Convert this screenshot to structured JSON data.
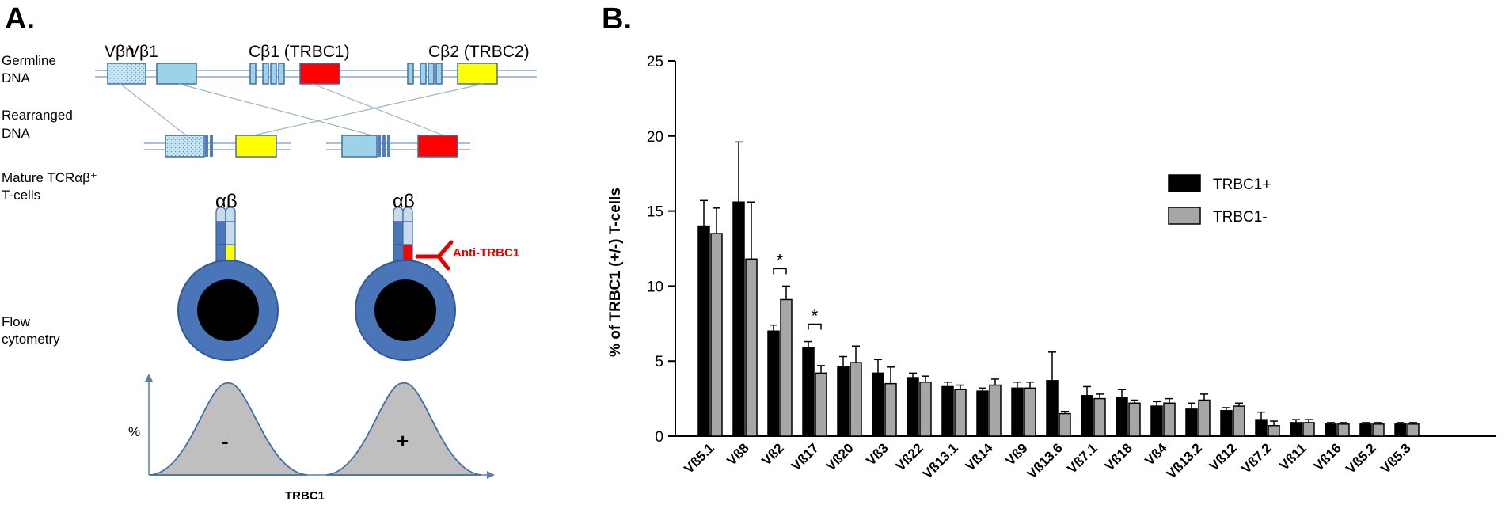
{
  "panel_a": {
    "letter": "A.",
    "row_labels": {
      "germline_line1": "Germline",
      "germline_line2": "DNA",
      "rearranged_line1": "Rearranged",
      "rearranged_line2": "DNA",
      "mature_line1": "Mature TCRαβ⁺",
      "mature_line2": "T-cells",
      "flow_line1": "Flow",
      "flow_line2": "cytometry"
    },
    "gene_labels": {
      "vbn": "Vβn",
      "vb1": "Vβ1",
      "cb1": "Cβ1 (TRBC1)",
      "cb2": "Cβ2 (TRBC2)"
    },
    "alpha_beta": "αβ",
    "antibody_label": "Anti-TRBC1",
    "flow": {
      "y_label": "%",
      "x_label": "TRBC1",
      "neg_symbol": "-",
      "pos_symbol": "+"
    },
    "colors": {
      "gene_blue": "#9dd3e8",
      "segment_blue": "#4f7fbe",
      "trbc1_red": "#ff0000",
      "trbc2_yellow": "#ffff00",
      "cell_blue": "#4a76b9",
      "peak_grey": "#bfbfbf"
    }
  },
  "panel_b": {
    "letter": "B."
  },
  "chart_data": {
    "type": "bar",
    "title": "",
    "xlabel": "",
    "ylabel": "% of TRBC1 (+/-) T-cells",
    "ylim": [
      0,
      25
    ],
    "yticks": [
      0,
      5,
      10,
      15,
      20,
      25
    ],
    "legend_position": "top-right",
    "categories": [
      "Vß5.1",
      "Vß8",
      "Vß2",
      "Vß17",
      "Vß20",
      "Vß3",
      "Vß22",
      "Vß13.1",
      "Vß14",
      "Vß9",
      "Vß13.6",
      "Vß7.1",
      "Vß18",
      "Vß4",
      "Vß13.2",
      "Vß12",
      "Vß7.2",
      "Vß11",
      "Vß16",
      "Vß5.2",
      "Vß5.3"
    ],
    "series": [
      {
        "name": "TRBC1+",
        "color": "#000000",
        "values": [
          14.0,
          15.6,
          7.0,
          5.9,
          4.6,
          4.2,
          3.9,
          3.3,
          3.0,
          3.2,
          3.7,
          2.7,
          2.6,
          2.0,
          1.8,
          1.7,
          1.1,
          0.9,
          0.8,
          0.8,
          0.8
        ],
        "errors": [
          1.7,
          4.0,
          0.4,
          0.4,
          0.7,
          0.9,
          0.3,
          0.3,
          0.2,
          0.4,
          1.9,
          0.6,
          0.5,
          0.3,
          0.4,
          0.2,
          0.5,
          0.2,
          0.1,
          0.1,
          0.1
        ]
      },
      {
        "name": "TRBC1-",
        "color": "#a6a6a6",
        "values": [
          13.5,
          11.8,
          9.1,
          4.2,
          4.9,
          3.5,
          3.6,
          3.1,
          3.4,
          3.2,
          1.5,
          2.5,
          2.2,
          2.2,
          2.4,
          2.0,
          0.7,
          0.9,
          0.8,
          0.8,
          0.8
        ],
        "errors": [
          1.7,
          3.8,
          0.9,
          0.5,
          1.1,
          1.1,
          0.4,
          0.3,
          0.4,
          0.4,
          0.15,
          0.3,
          0.2,
          0.3,
          0.4,
          0.2,
          0.3,
          0.2,
          0.1,
          0.1,
          0.1
        ]
      }
    ],
    "significance": [
      {
        "category": "Vß2",
        "label": "*"
      },
      {
        "category": "Vß17",
        "label": "*"
      }
    ]
  }
}
